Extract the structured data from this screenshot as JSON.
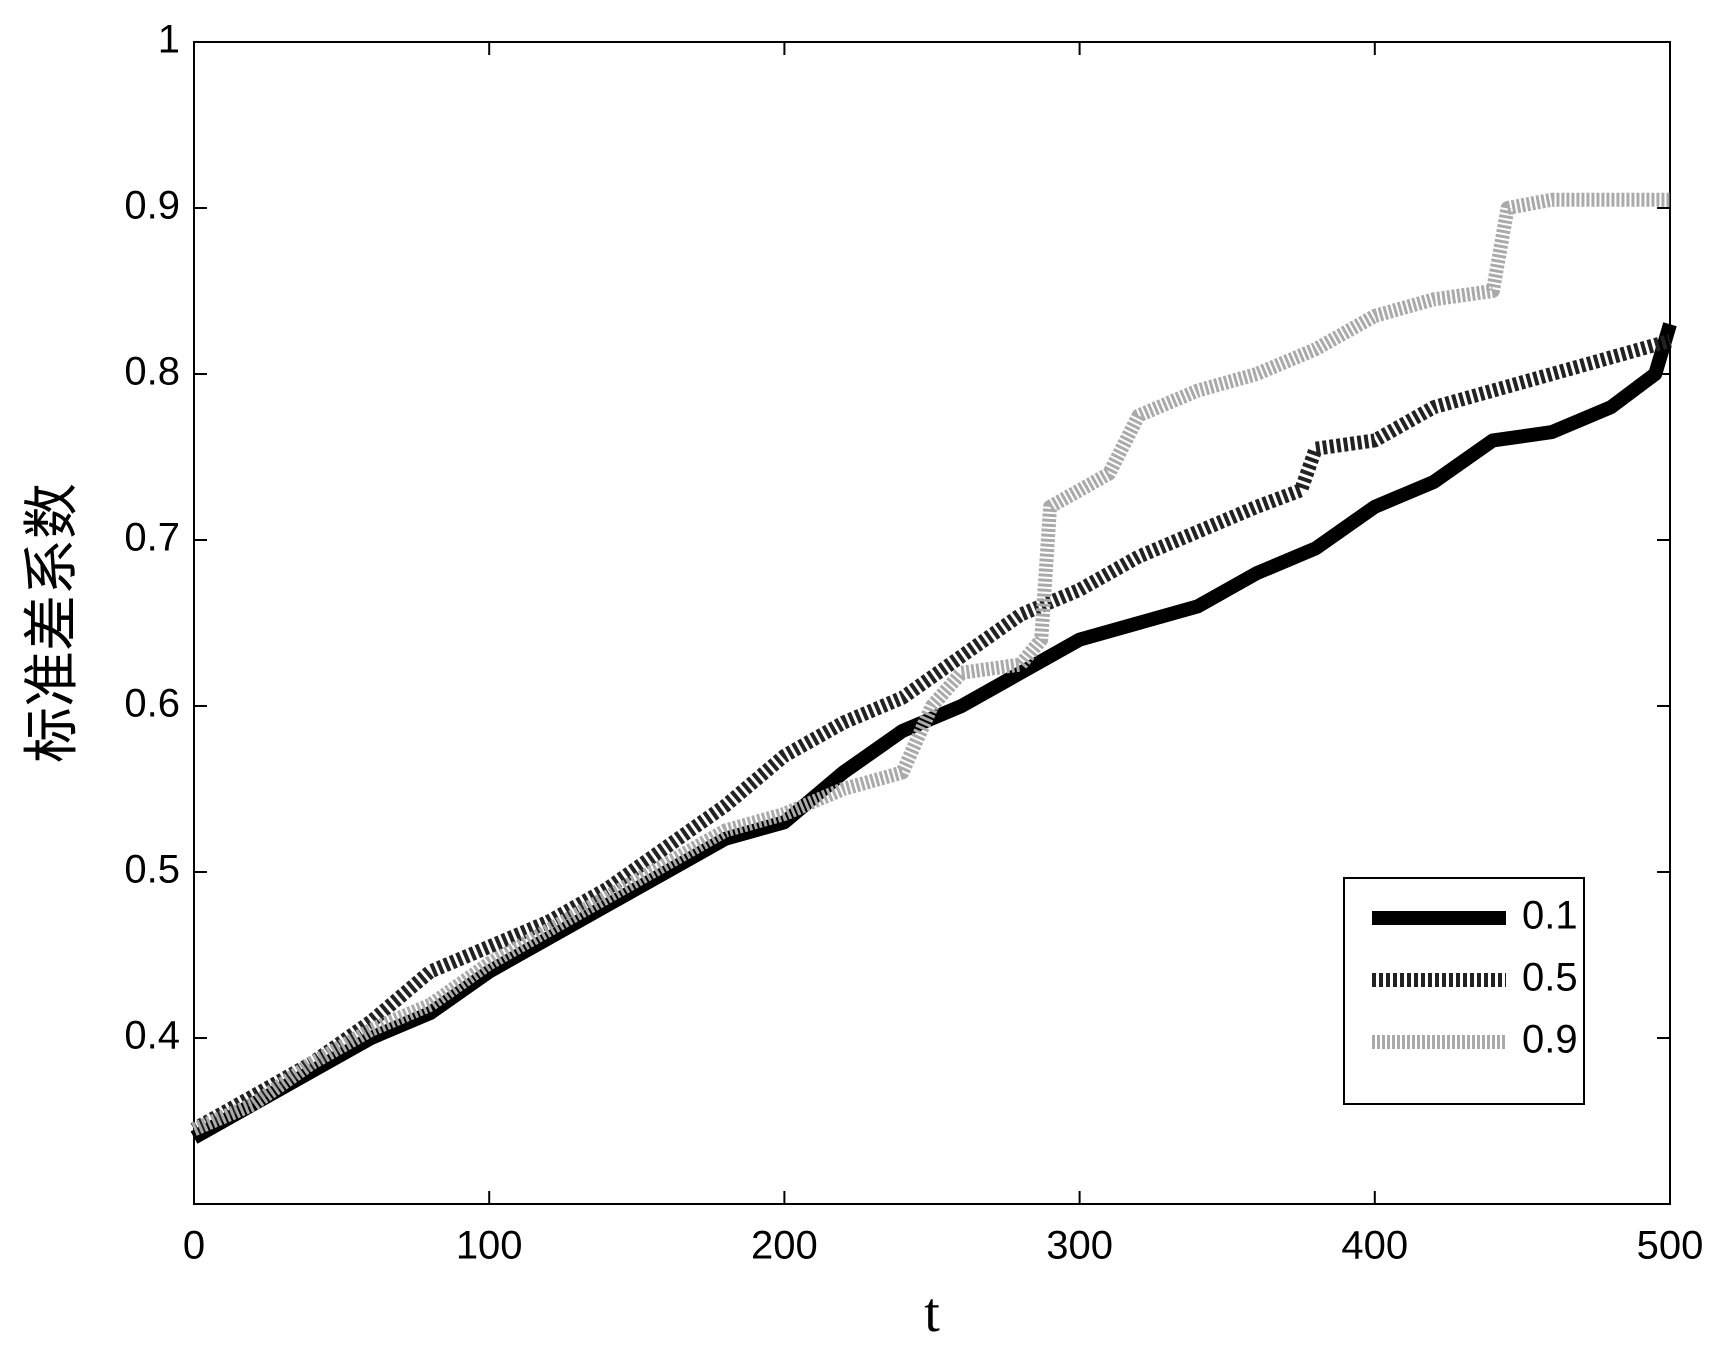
{
  "chart_data": {
    "type": "line",
    "xlabel": "t",
    "ylabel": "标准差系数",
    "xlim": [
      0,
      500
    ],
    "ylim": [
      0.3,
      1
    ],
    "xticks": [
      0,
      100,
      200,
      300,
      400,
      500
    ],
    "yticks": [
      0.4,
      0.5,
      0.6,
      0.7,
      0.8,
      0.9,
      1
    ],
    "legend": "lower right",
    "series": [
      {
        "name": "0.1",
        "color": "#000000",
        "dash": "none",
        "x": [
          0,
          20,
          40,
          60,
          80,
          100,
          120,
          140,
          160,
          180,
          200,
          220,
          240,
          260,
          280,
          300,
          320,
          340,
          360,
          380,
          400,
          420,
          440,
          460,
          480,
          495,
          500
        ],
        "values": [
          0.34,
          0.36,
          0.38,
          0.4,
          0.415,
          0.44,
          0.46,
          0.48,
          0.5,
          0.52,
          0.53,
          0.56,
          0.585,
          0.6,
          0.62,
          0.64,
          0.65,
          0.66,
          0.68,
          0.695,
          0.72,
          0.735,
          0.76,
          0.765,
          0.78,
          0.8,
          0.83
        ]
      },
      {
        "name": "0.5",
        "color": "#222222",
        "dash": "4 3",
        "x": [
          0,
          20,
          40,
          60,
          80,
          100,
          120,
          140,
          160,
          180,
          200,
          220,
          240,
          260,
          280,
          300,
          320,
          340,
          360,
          375,
          380,
          400,
          420,
          440,
          460,
          480,
          500
        ],
        "values": [
          0.345,
          0.365,
          0.385,
          0.41,
          0.44,
          0.455,
          0.47,
          0.49,
          0.515,
          0.54,
          0.57,
          0.59,
          0.605,
          0.63,
          0.655,
          0.67,
          0.69,
          0.705,
          0.72,
          0.73,
          0.755,
          0.76,
          0.78,
          0.79,
          0.8,
          0.81,
          0.82
        ]
      },
      {
        "name": "0.9",
        "color": "#aaaaaa",
        "dash": "3 2",
        "x": [
          0,
          20,
          40,
          60,
          80,
          100,
          120,
          140,
          160,
          180,
          200,
          220,
          240,
          250,
          260,
          280,
          287,
          290,
          310,
          320,
          340,
          360,
          380,
          400,
          420,
          440,
          445,
          460,
          480,
          500
        ],
        "values": [
          0.345,
          0.36,
          0.385,
          0.405,
          0.42,
          0.445,
          0.465,
          0.485,
          0.505,
          0.525,
          0.535,
          0.55,
          0.56,
          0.6,
          0.62,
          0.625,
          0.64,
          0.72,
          0.74,
          0.775,
          0.79,
          0.8,
          0.815,
          0.835,
          0.845,
          0.85,
          0.9,
          0.905,
          0.905,
          0.905
        ]
      }
    ]
  }
}
